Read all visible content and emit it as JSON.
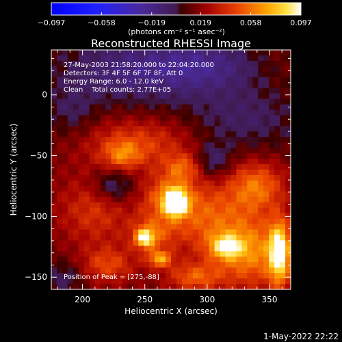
{
  "chart_data": {
    "type": "heatmap",
    "title": "Reconstructed RHESSI Image",
    "xlabel": "Heliocentric X (arcsec)",
    "ylabel": "Heliocentric Y (arcsec)",
    "xlim": [
      175,
      367
    ],
    "ylim": [
      -160,
      37
    ],
    "x_ticks": [
      200,
      250,
      300,
      350
    ],
    "y_ticks": [
      0,
      -50,
      -100,
      -150
    ],
    "colorbar": {
      "min": -0.097,
      "max": 0.097,
      "ticks": [
        "-0.097",
        "-0.058",
        "-0.019",
        "0.019",
        "0.058",
        "0.097"
      ],
      "unit_label": "(photons cm⁻² s⁻¹ asec⁻²)"
    },
    "annotations": [
      "27-May-2003 21:58:20.000 to 22:04:20.000",
      "Detectors: 3F 4F 5F 6F 7F 8F, Att 0",
      "Energy Range: 6.0 - 12.0 keV",
      "Clean    Total counts: 2.77E+05"
    ],
    "peak_label": "Position of Peak = [275,-88]",
    "peak": {
      "x": 275,
      "y": -88,
      "value": 0.097
    },
    "blobs": [
      {
        "x": 275,
        "y": -88,
        "sx": 6,
        "sy": 7,
        "v": 0.097
      },
      {
        "x": 268,
        "y": -85,
        "sx": 14,
        "sy": 14,
        "v": 0.035
      },
      {
        "x": 250,
        "y": -118,
        "sx": 5,
        "sy": 5,
        "v": 0.065
      },
      {
        "x": 255,
        "y": -115,
        "sx": 12,
        "sy": 10,
        "v": 0.03
      },
      {
        "x": 262,
        "y": -135,
        "sx": 7,
        "sy": 5,
        "v": 0.05
      },
      {
        "x": 358,
        "y": -130,
        "sx": 6,
        "sy": 18,
        "v": 0.075
      },
      {
        "x": 335,
        "y": -130,
        "sx": 20,
        "sy": 20,
        "v": 0.045
      },
      {
        "x": 315,
        "y": -125,
        "sx": 9,
        "sy": 7,
        "v": 0.05
      },
      {
        "x": 300,
        "y": -100,
        "sx": 25,
        "sy": 22,
        "v": 0.035
      },
      {
        "x": 340,
        "y": -75,
        "sx": 15,
        "sy": 14,
        "v": 0.04
      },
      {
        "x": 245,
        "y": -40,
        "sx": 30,
        "sy": 14,
        "v": 0.03
      },
      {
        "x": 210,
        "y": -95,
        "sx": 20,
        "sy": 20,
        "v": 0.025
      },
      {
        "x": 220,
        "y": -140,
        "sx": 15,
        "sy": 10,
        "v": 0.03
      },
      {
        "x": 232,
        "y": -50,
        "sx": 10,
        "sy": 8,
        "v": 0.03
      },
      {
        "x": 280,
        "y": -60,
        "sx": 10,
        "sy": 8,
        "v": 0.03
      },
      {
        "x": 290,
        "y": -150,
        "sx": 15,
        "sy": 8,
        "v": 0.035
      },
      {
        "x": 240,
        "y": 20,
        "sx": 45,
        "sy": 20,
        "v": -0.03
      },
      {
        "x": 330,
        "y": -20,
        "sx": 35,
        "sy": 20,
        "v": -0.02
      },
      {
        "x": 190,
        "y": -15,
        "sx": 15,
        "sy": 15,
        "v": -0.015
      },
      {
        "x": 225,
        "y": -75,
        "sx": 12,
        "sy": 10,
        "v": -0.03
      },
      {
        "x": 305,
        "y": -55,
        "sx": 10,
        "sy": 10,
        "v": -0.025
      },
      {
        "x": 185,
        "y": -150,
        "sx": 12,
        "sy": 10,
        "v": -0.02
      },
      {
        "x": 300,
        "y": 25,
        "sx": 30,
        "sy": 15,
        "v": -0.025
      }
    ]
  },
  "timestamp": "1-May-2022 22:22"
}
